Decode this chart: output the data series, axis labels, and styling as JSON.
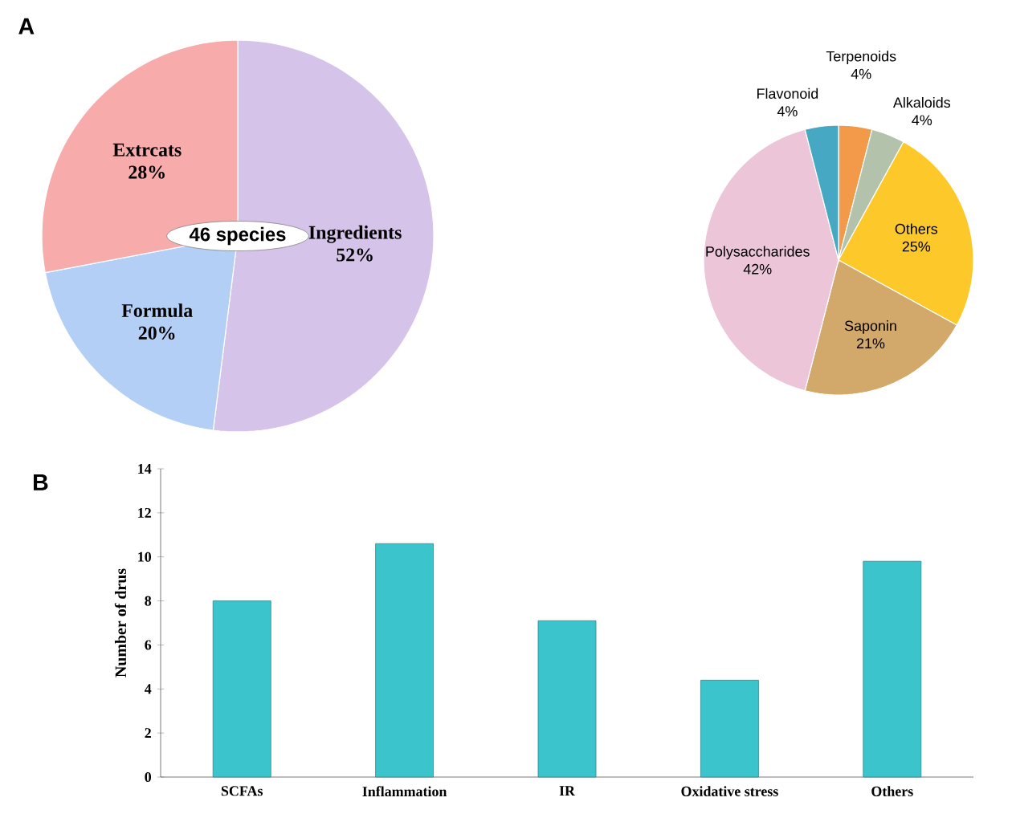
{
  "chart_data": [
    {
      "type": "pie",
      "title": "A",
      "categories": [
        "Ingredients",
        "Formula",
        "Extrcats"
      ],
      "values": [
        52,
        20,
        28
      ],
      "value_labels": [
        "52%",
        "20%",
        "28%"
      ],
      "colors": [
        "#d5c3ea",
        "#b3cff5",
        "#f8abab"
      ],
      "annotations": [
        "46 species"
      ]
    },
    {
      "type": "pie",
      "categories": [
        "Terpenoids",
        "Alkaloids",
        "Others",
        "Saponin",
        "Polysaccharides",
        "Flavonoid"
      ],
      "values": [
        4,
        4,
        25,
        21,
        42,
        4
      ],
      "value_labels": [
        "4%",
        "4%",
        "25%",
        "21%",
        "42%",
        "4%"
      ],
      "colors": [
        "#f39a4a",
        "#b3c2ab",
        "#fdc82a",
        "#d2a96a",
        "#ecc5d8",
        "#46a8c2"
      ]
    },
    {
      "type": "bar",
      "title": "B",
      "categories": [
        "SCFAs",
        "Inflammation",
        "IR",
        "Oxidative stress",
        "Others"
      ],
      "values": [
        8,
        10.6,
        7.1,
        4.4,
        9.8
      ],
      "color": "#3cc4cc",
      "ylabel": "Number of drus",
      "ylim": [
        0,
        14
      ],
      "yticks": [
        0,
        2,
        4,
        6,
        8,
        10,
        12,
        14
      ]
    }
  ]
}
